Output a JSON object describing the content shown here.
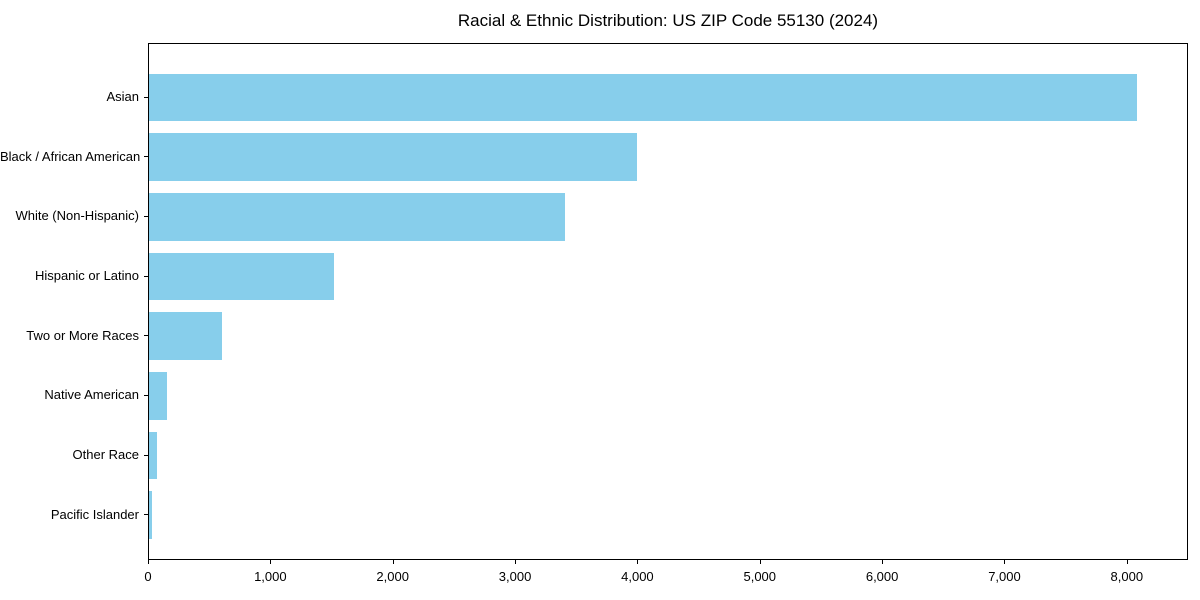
{
  "chart_data": {
    "type": "bar",
    "orientation": "horizontal",
    "title": "Racial & Ethnic Distribution: US ZIP Code 55130 (2024)",
    "categories": [
      "Asian",
      "Black / African American",
      "White (Non-Hispanic)",
      "Hispanic or Latino",
      "Two or More Races",
      "Native American",
      "Other Race",
      "Pacific Islander"
    ],
    "values": [
      8075,
      3990,
      3400,
      1510,
      595,
      145,
      62,
      28
    ],
    "xlabel": "",
    "ylabel": "",
    "xlim": [
      0,
      8500
    ],
    "x_ticks": [
      0,
      1000,
      2000,
      3000,
      4000,
      5000,
      6000,
      7000,
      8000
    ],
    "x_tick_labels": [
      "0",
      "1,000",
      "2,000",
      "3,000",
      "4,000",
      "5,000",
      "6,000",
      "7,000",
      "8,000"
    ],
    "grid": false,
    "legend": "none",
    "bar_color": "#87CEEB",
    "axis_color": "#000000",
    "text_color": "#000000"
  }
}
